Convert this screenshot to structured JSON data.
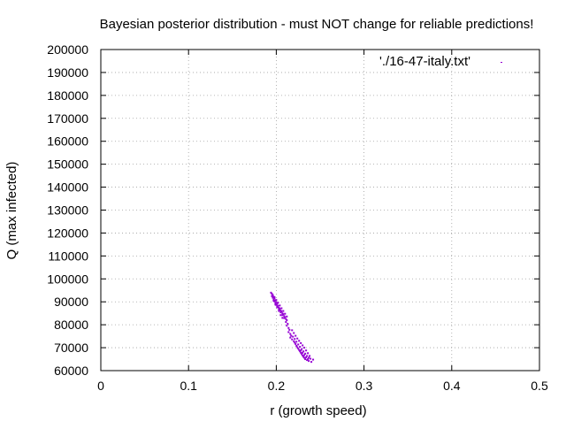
{
  "chart_data": {
    "type": "scatter",
    "title": "Bayesian posterior distribution - must NOT change for reliable predictions!",
    "xlabel": "r (growth speed)",
    "ylabel": "Q (max infected)",
    "xlim": [
      0,
      0.5
    ],
    "ylim": [
      60000,
      200000
    ],
    "xticks": [
      0,
      0.1,
      0.2,
      0.3,
      0.4,
      0.5
    ],
    "xtick_labels": [
      "0",
      "0.1",
      "0.2",
      "0.3",
      "0.4",
      "0.5"
    ],
    "yticks": [
      60000,
      70000,
      80000,
      90000,
      100000,
      110000,
      120000,
      130000,
      140000,
      150000,
      160000,
      170000,
      180000,
      190000,
      200000
    ],
    "ytick_labels": [
      "60000",
      "70000",
      "80000",
      "90000",
      "100000",
      "110000",
      "120000",
      "130000",
      "140000",
      "150000",
      "160000",
      "170000",
      "180000",
      "190000",
      "200000"
    ],
    "grid": true,
    "legend_position": "top-right",
    "series": [
      {
        "name": "'./16-47-italy.txt'",
        "color": "#9400d3",
        "points": [
          [
            0.194,
            94000
          ],
          [
            0.195,
            93500
          ],
          [
            0.196,
            93000
          ],
          [
            0.195,
            92500
          ],
          [
            0.197,
            92200
          ],
          [
            0.196,
            91800
          ],
          [
            0.198,
            91500
          ],
          [
            0.197,
            91000
          ],
          [
            0.199,
            90600
          ],
          [
            0.198,
            90200
          ],
          [
            0.2,
            89800
          ],
          [
            0.199,
            89400
          ],
          [
            0.201,
            89000
          ],
          [
            0.2,
            88600
          ],
          [
            0.202,
            88200
          ],
          [
            0.201,
            87800
          ],
          [
            0.203,
            87400
          ],
          [
            0.204,
            87000
          ],
          [
            0.203,
            86600
          ],
          [
            0.205,
            86200
          ],
          [
            0.206,
            85800
          ],
          [
            0.205,
            85400
          ],
          [
            0.207,
            85000
          ],
          [
            0.208,
            84600
          ],
          [
            0.207,
            84200
          ],
          [
            0.209,
            83800
          ],
          [
            0.21,
            83300
          ],
          [
            0.209,
            82900
          ],
          [
            0.211,
            82500
          ],
          [
            0.212,
            82000
          ],
          [
            0.196,
            92800
          ],
          [
            0.198,
            92000
          ],
          [
            0.2,
            90800
          ],
          [
            0.202,
            89600
          ],
          [
            0.204,
            88400
          ],
          [
            0.206,
            87200
          ],
          [
            0.208,
            86000
          ],
          [
            0.21,
            84800
          ],
          [
            0.212,
            83600
          ],
          [
            0.197,
            90400
          ],
          [
            0.199,
            88800
          ],
          [
            0.201,
            87600
          ],
          [
            0.203,
            86000
          ],
          [
            0.205,
            84200
          ],
          [
            0.207,
            83000
          ],
          [
            0.211,
            81200
          ],
          [
            0.213,
            80400
          ],
          [
            0.212,
            79600
          ],
          [
            0.214,
            78600
          ],
          [
            0.215,
            77800
          ],
          [
            0.214,
            76800
          ],
          [
            0.216,
            76000
          ],
          [
            0.217,
            75200
          ],
          [
            0.216,
            74400
          ],
          [
            0.218,
            73600
          ],
          [
            0.219,
            74800
          ],
          [
            0.22,
            72800
          ],
          [
            0.221,
            72200
          ],
          [
            0.222,
            71600
          ],
          [
            0.223,
            70800
          ],
          [
            0.224,
            70200
          ],
          [
            0.225,
            69600
          ],
          [
            0.226,
            69000
          ],
          [
            0.227,
            68400
          ],
          [
            0.228,
            67800
          ],
          [
            0.229,
            67200
          ],
          [
            0.23,
            66600
          ],
          [
            0.231,
            66000
          ],
          [
            0.232,
            65600
          ],
          [
            0.233,
            65000
          ],
          [
            0.235,
            64600
          ],
          [
            0.237,
            64200
          ],
          [
            0.24,
            63800
          ],
          [
            0.242,
            64800
          ],
          [
            0.238,
            66400
          ],
          [
            0.236,
            67600
          ],
          [
            0.234,
            68800
          ],
          [
            0.232,
            70000
          ],
          [
            0.23,
            71000
          ],
          [
            0.228,
            72000
          ],
          [
            0.226,
            73000
          ],
          [
            0.224,
            74000
          ],
          [
            0.222,
            75200
          ],
          [
            0.22,
            76400
          ],
          [
            0.218,
            77600
          ],
          [
            0.225,
            71400
          ],
          [
            0.227,
            70400
          ],
          [
            0.229,
            69400
          ],
          [
            0.231,
            68400
          ],
          [
            0.233,
            67400
          ],
          [
            0.235,
            66400
          ],
          [
            0.237,
            65600
          ],
          [
            0.239,
            65200
          ],
          [
            0.221,
            73800
          ],
          [
            0.223,
            72600
          ],
          [
            0.228,
            68800
          ],
          [
            0.23,
            67800
          ],
          [
            0.232,
            66800
          ],
          [
            0.234,
            65800
          ],
          [
            0.236,
            65000
          ]
        ]
      }
    ]
  }
}
